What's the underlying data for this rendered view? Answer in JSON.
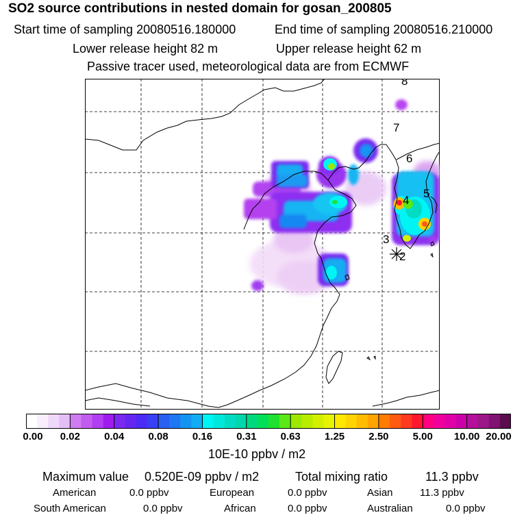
{
  "title": "SO2 source contributions in nested domain for gosan_200805",
  "header": {
    "start_label": "Start time of sampling 20080516.180000",
    "end_label": "End time of sampling 20080516.210000",
    "lower_label": "Lower release height   82 m",
    "upper_label": "Upper release height   62 m",
    "tracer_note": "Passive tracer used, meteorological data are from ECMWF"
  },
  "map": {
    "receptor_marker": "star-icon",
    "labels": [
      "8",
      "7",
      "6",
      "5",
      "4",
      "3",
      "2"
    ]
  },
  "colorbar": {
    "tick_labels": [
      "0.00",
      "0.02",
      "0.04",
      "0.08",
      "0.16",
      "0.31",
      "0.63",
      "1.25",
      "2.50",
      "5.00",
      "10.00",
      "20.00"
    ],
    "unit": "10E-10 ppbv / m2",
    "colors": [
      "#ffffff",
      "#f8eefc",
      "#efd8fa",
      "#e4bff6",
      "#cf7cf0",
      "#c25cee",
      "#b13ef0",
      "#9f1cef",
      "#7a2af0",
      "#6526f2",
      "#4b2cf4",
      "#3840f4",
      "#2a60f2",
      "#1f78f2",
      "#1494f2",
      "#12acf2",
      "#00f4f4",
      "#00e8dc",
      "#00dcc4",
      "#00d6ac",
      "#00d880",
      "#00de5a",
      "#20e030",
      "#5ae818",
      "#9ce800",
      "#b8ec00",
      "#d2f000",
      "#e6f400",
      "#ffe800",
      "#ffd400",
      "#ffbc00",
      "#ffa400",
      "#ff7c00",
      "#ff5a10",
      "#ff3a20",
      "#ff1830",
      "#ff0080",
      "#f0009c",
      "#e000a8",
      "#cc00a8",
      "#b4109c",
      "#9c1888",
      "#801470",
      "#5a0c4c"
    ]
  },
  "stats": {
    "max_label": "Maximum value",
    "max_value": "0.520E-09 ppbv / m2",
    "total_label": "Total mixing ratio",
    "total_value": "11.3 ppbv",
    "regions": [
      {
        "name": "American",
        "value": "0.0 ppbv"
      },
      {
        "name": "European",
        "value": "0.0 ppbv"
      },
      {
        "name": "Asian",
        "value": "11.3 ppbv"
      },
      {
        "name": "South American",
        "value": "0.0 ppbv"
      },
      {
        "name": "African",
        "value": "0.0 ppbv"
      },
      {
        "name": "Australian",
        "value": "0.0 ppbv"
      }
    ]
  }
}
